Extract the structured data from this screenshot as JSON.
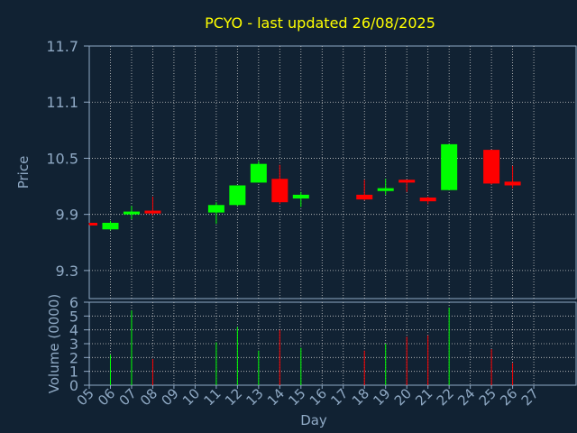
{
  "chart_data": {
    "type": "candlestick",
    "title": "PCYO - last updated 26/08/2025",
    "xlabel": "Day",
    "price_panel": {
      "ylabel": "Price",
      "ylim": [
        9.0,
        11.7
      ],
      "yticks": [
        "9.3",
        "9.9",
        "10.5",
        "11.1",
        "11.7"
      ]
    },
    "volume_panel": {
      "ylabel": "Volume (0000)",
      "ylim": [
        0,
        6
      ],
      "yticks": [
        "0",
        "1",
        "2",
        "3",
        "4",
        "5",
        "6"
      ]
    },
    "x_tick_labels": [
      "05",
      "06",
      "07",
      "08",
      "09",
      "10",
      "11",
      "12",
      "13",
      "14",
      "15",
      "16",
      "17",
      "18",
      "19",
      "20",
      "21",
      "22",
      "24",
      "25",
      "26",
      "27"
    ],
    "grid": true,
    "candles": [
      {
        "day": "05",
        "open": 9.81,
        "close": 9.79,
        "high": 9.81,
        "low": 9.79,
        "volume": 0
      },
      {
        "day": "06",
        "open": 9.74,
        "close": 9.81,
        "high": 9.83,
        "low": 9.73,
        "volume": 2.2
      },
      {
        "day": "07",
        "open": 9.9,
        "close": 9.93,
        "high": 9.99,
        "low": 9.85,
        "volume": 5.4
      },
      {
        "day": "08",
        "open": 9.94,
        "close": 9.91,
        "high": 10.09,
        "low": 9.89,
        "volume": 1.9
      },
      {
        "day": "11",
        "open": 9.92,
        "close": 10.0,
        "high": 10.03,
        "low": 9.8,
        "volume": 3.1
      },
      {
        "day": "12",
        "open": 10.0,
        "close": 10.21,
        "high": 10.21,
        "low": 9.99,
        "volume": 4.2
      },
      {
        "day": "13",
        "open": 10.24,
        "close": 10.44,
        "high": 10.47,
        "low": 10.24,
        "volume": 2.5
      },
      {
        "day": "14",
        "open": 10.28,
        "close": 10.03,
        "high": 10.43,
        "low": 10.01,
        "volume": 4.0
      },
      {
        "day": "15",
        "open": 10.07,
        "close": 10.11,
        "high": 10.14,
        "low": 9.98,
        "volume": 2.7
      },
      {
        "day": "18",
        "open": 10.11,
        "close": 10.06,
        "high": 10.27,
        "low": 10.05,
        "volume": 2.5
      },
      {
        "day": "19",
        "open": 10.15,
        "close": 10.18,
        "high": 10.28,
        "low": 10.11,
        "volume": 3.0
      },
      {
        "day": "20",
        "open": 10.27,
        "close": 10.24,
        "high": 10.27,
        "low": 10.14,
        "volume": 3.5
      },
      {
        "day": "21",
        "open": 10.08,
        "close": 10.04,
        "high": 10.09,
        "low": 10.01,
        "volume": 3.6
      },
      {
        "day": "22",
        "open": 10.16,
        "close": 10.65,
        "high": 10.65,
        "low": 10.16,
        "volume": 5.6
      },
      {
        "day": "25",
        "open": 10.59,
        "close": 10.23,
        "high": 10.59,
        "low": 10.22,
        "volume": 2.6
      },
      {
        "day": "26",
        "open": 10.25,
        "close": 10.21,
        "high": 10.42,
        "low": 10.18,
        "volume": 1.6
      }
    ]
  },
  "colors": {
    "background": "#112233",
    "panel": "#112233",
    "border": "#8fa9c4",
    "grid": "#c8c8c8",
    "title": "#ffff00",
    "axis_text": "#8fa9c4",
    "up": "#00ff00",
    "down": "#ff0000"
  }
}
